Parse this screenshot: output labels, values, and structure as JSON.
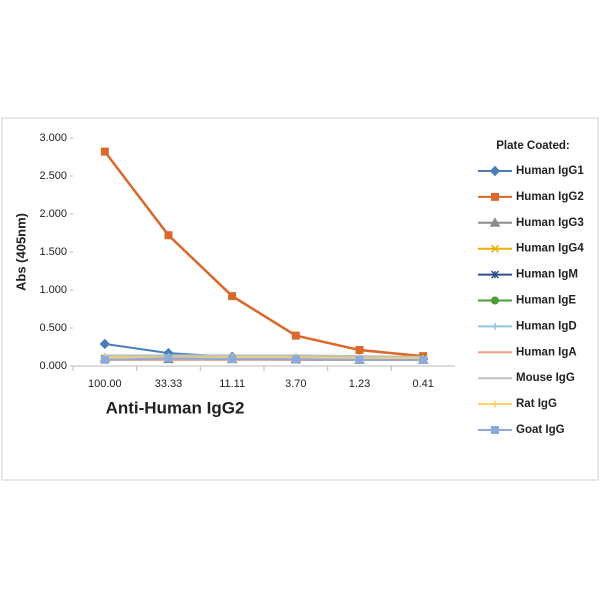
{
  "chart_data": {
    "type": "line",
    "x_label": "Anti-Human IgG2",
    "y_label": "Abs (405nm)",
    "legend_title": "Plate Coated:",
    "legend": "right",
    "categories": [
      "100.00",
      "33.33",
      "11.11",
      "3.70",
      "1.23",
      "0.41"
    ],
    "ylim": [
      0,
      3
    ],
    "yticks": [
      {
        "value": 0,
        "label": "0.000"
      },
      {
        "value": 0.5,
        "label": "0.500"
      },
      {
        "value": 1,
        "label": "1.000"
      },
      {
        "value": 1.5,
        "label": "1.500"
      },
      {
        "value": 2,
        "label": "2.000"
      },
      {
        "value": 2.5,
        "label": "2.500"
      },
      {
        "value": 3,
        "label": "3.000"
      }
    ],
    "series": [
      {
        "name": "Human IgG1",
        "color": "#4a7ebb",
        "marker": "diamond",
        "values": [
          0.29,
          0.17,
          0.12,
          0.1,
          0.09,
          0.09
        ]
      },
      {
        "name": "Human IgG2",
        "color": "#d9682a",
        "marker": "square",
        "values": [
          2.82,
          1.72,
          0.92,
          0.4,
          0.21,
          0.13
        ]
      },
      {
        "name": "Human IgG3",
        "color": "#8c8c8c",
        "marker": "triangle",
        "values": [
          0.1,
          0.09,
          0.09,
          0.09,
          0.08,
          0.08
        ]
      },
      {
        "name": "Human IgG4",
        "color": "#e8b000",
        "marker": "x",
        "values": [
          0.1,
          0.1,
          0.1,
          0.1,
          0.09,
          0.09
        ]
      },
      {
        "name": "Human IgM",
        "color": "#2f4f8f",
        "marker": "star",
        "values": [
          0.09,
          0.09,
          0.09,
          0.08,
          0.08,
          0.08
        ]
      },
      {
        "name": "Human IgE",
        "color": "#4a9e3a",
        "marker": "circle",
        "values": [
          0.09,
          0.09,
          0.09,
          0.09,
          0.08,
          0.08
        ]
      },
      {
        "name": "Human IgD",
        "color": "#92c5e8",
        "marker": "plus",
        "values": [
          0.12,
          0.12,
          0.12,
          0.12,
          0.11,
          0.1
        ]
      },
      {
        "name": "Human IgA",
        "color": "#f0a080",
        "marker": "none",
        "values": [
          0.08,
          0.08,
          0.08,
          0.08,
          0.08,
          0.08
        ]
      },
      {
        "name": "Mouse IgG",
        "color": "#c0c0c0",
        "marker": "none",
        "values": [
          0.14,
          0.14,
          0.14,
          0.14,
          0.13,
          0.12
        ]
      },
      {
        "name": "Rat IgG",
        "color": "#ffd060",
        "marker": "plus",
        "values": [
          0.11,
          0.11,
          0.11,
          0.11,
          0.1,
          0.1
        ]
      },
      {
        "name": "Goat IgG",
        "color": "#8eaadb",
        "marker": "square",
        "values": [
          0.08,
          0.1,
          0.09,
          0.09,
          0.08,
          0.08
        ]
      }
    ]
  }
}
